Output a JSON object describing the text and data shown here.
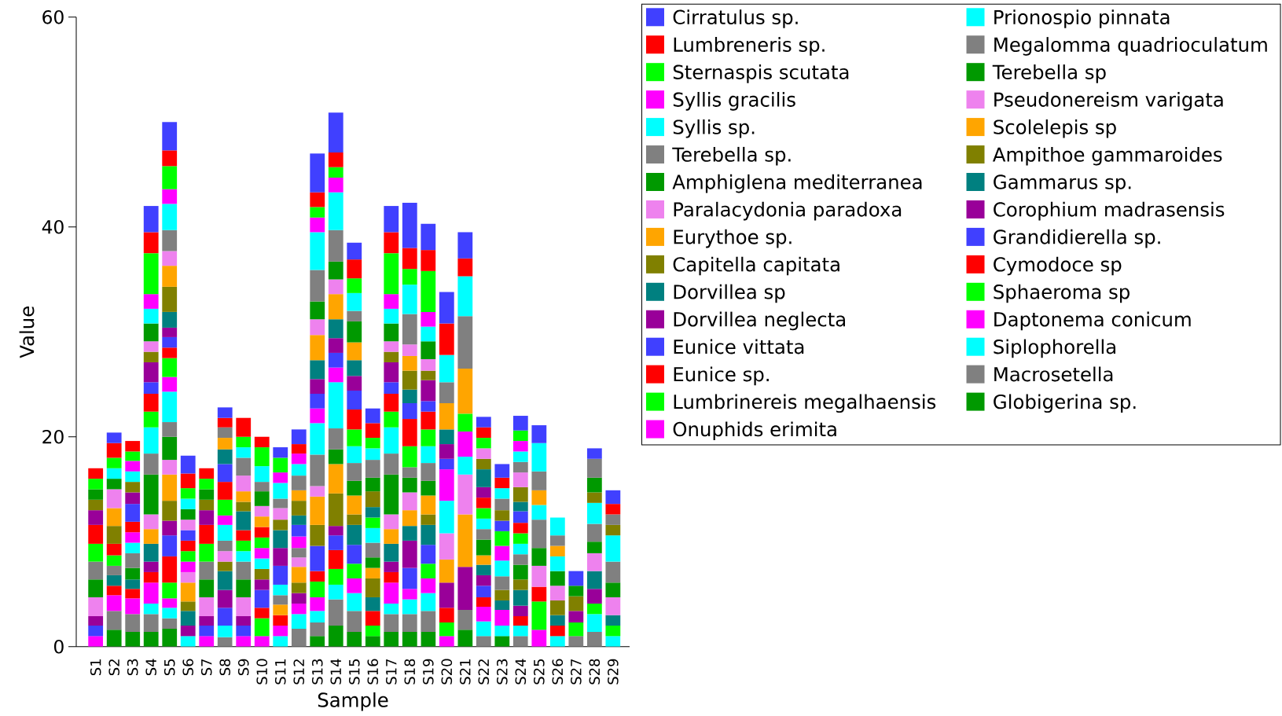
{
  "chart_data": {
    "type": "bar",
    "stacked": true,
    "xlabel": "Sample",
    "ylabel": "Value",
    "legend": "right",
    "categories": [
      "S1",
      "S2",
      "S3",
      "S4",
      "S5",
      "S6",
      "S7",
      "S8",
      "S9",
      "S10",
      "S11",
      "S12",
      "S13",
      "S14",
      "S15",
      "S16",
      "S17",
      "S18",
      "S19",
      "S20",
      "S21",
      "S22",
      "S23",
      "S24",
      "S25",
      "S26",
      "S27",
      "S28",
      "S29"
    ],
    "ylim": [
      0,
      60
    ],
    "yticks": [
      0,
      20,
      40,
      60
    ],
    "series": [
      {
        "name": "Globigerina sp.",
        "color": "#009900",
        "values": [
          0,
          1.6,
          1.4,
          1.4,
          1.7,
          0,
          0,
          0,
          0,
          0,
          0,
          0,
          1.0,
          2.0,
          1.4,
          1.0,
          1.4,
          1.4,
          1.4,
          0,
          1.6,
          0,
          1.0,
          0,
          0,
          0,
          0,
          0,
          0
        ]
      },
      {
        "name": "Macrosetella",
        "color": "#808080",
        "values": [
          0,
          1.8,
          1.7,
          1.7,
          1.0,
          0,
          0,
          0.9,
          0,
          0,
          0,
          1.7,
          1.3,
          2.5,
          2.0,
          0,
          1.7,
          1.7,
          2.0,
          0,
          1.9,
          1.0,
          0,
          1.0,
          0,
          0,
          1.0,
          1.4,
          0
        ]
      },
      {
        "name": "Siplophorella",
        "color": "#00ffff",
        "values": [
          0,
          0,
          0,
          1.0,
          1.0,
          1.0,
          0,
          1.1,
          0,
          0,
          1.0,
          1.4,
          1.1,
          1.4,
          1.7,
          0,
          1.0,
          1.4,
          1.7,
          0,
          0,
          1.4,
          1.0,
          1.0,
          0,
          1.0,
          0,
          1.7,
          1.0
        ]
      },
      {
        "name": "Daptonema conicum",
        "color": "#ff00ff",
        "values": [
          1.0,
          1.5,
          1.5,
          2.0,
          0.9,
          0,
          1.0,
          0,
          1.0,
          1.0,
          1.0,
          1.0,
          1.3,
          0,
          1.4,
          0,
          2.0,
          1.0,
          1.4,
          1.0,
          0,
          1.4,
          1.5,
          0,
          1.6,
          0,
          0,
          0,
          0
        ]
      },
      {
        "name": "Sphaeroma sp",
        "color": "#00ff00",
        "values": [
          0,
          0,
          0,
          0,
          1.5,
          0,
          0,
          0,
          0,
          1.7,
          0,
          0,
          1.5,
          1.5,
          1.4,
          1.0,
          0,
          0,
          1.4,
          1.3,
          0,
          0,
          0,
          0,
          2.7,
          0,
          1.3,
          1.0,
          1.0
        ]
      },
      {
        "name": "Cymodoce sp",
        "color": "#ff0000",
        "values": [
          0,
          0.9,
          0.9,
          1.0,
          2.5,
          0,
          0,
          0,
          0,
          1.0,
          1.0,
          0,
          1.0,
          1.8,
          0,
          1.4,
          1.0,
          0,
          0,
          1.4,
          0,
          0.9,
          0,
          0.9,
          1.4,
          1.0,
          0,
          0,
          0
        ]
      },
      {
        "name": "Grandidierella sp.",
        "color": "#4040ff",
        "values": [
          1.0,
          0,
          0,
          0,
          2.0,
          0,
          1.0,
          1.7,
          1.0,
          1.7,
          0,
          0,
          2.4,
          1.4,
          1.8,
          0,
          0,
          2.0,
          1.8,
          0,
          0,
          1.1,
          0,
          0,
          0,
          0,
          0,
          0,
          0
        ]
      },
      {
        "name": "Corophium madrasensis",
        "color": "#990099",
        "values": [
          0.9,
          0,
          0,
          1.0,
          1.4,
          1.0,
          0.9,
          1.7,
          0.9,
          1.0,
          0,
          1.0,
          0,
          0.9,
          0,
          0,
          1.0,
          2.6,
          0,
          2.4,
          4.1,
          1.0,
          0,
          1.0,
          0,
          0,
          1.1,
          1.4,
          0
        ]
      },
      {
        "name": "Gammarus sp.",
        "color": "#008080",
        "values": [
          0,
          1.0,
          0.9,
          1.7,
          0,
          1.4,
          0,
          1.8,
          0,
          0,
          0,
          0,
          0,
          0,
          1.9,
          1.3,
          1.7,
          1.4,
          1.9,
          0,
          0,
          1.0,
          0.9,
          1.5,
          0,
          1.0,
          0,
          1.7,
          1.0
        ]
      },
      {
        "name": "Ampithoe gammaroides",
        "color": "#808000",
        "values": [
          0,
          0,
          0,
          0,
          1.9,
          0.9,
          0,
          0.9,
          0,
          1.0,
          0,
          1.0,
          2.0,
          3.1,
          1.0,
          1.8,
          0,
          0,
          1.0,
          0,
          0,
          0,
          1.0,
          1.0,
          0,
          1.4,
          1.4,
          0,
          0
        ]
      },
      {
        "name": "Scolelepis sp",
        "color": "#ffa500",
        "values": [
          0,
          0,
          0,
          1.4,
          2.5,
          1.8,
          0,
          0,
          0,
          0,
          1.0,
          1.5,
          2.7,
          2.8,
          1.8,
          1.0,
          1.4,
          1.5,
          1.8,
          2.2,
          5.0,
          0.9,
          0,
          0,
          0,
          0,
          0,
          0,
          0
        ]
      },
      {
        "name": "Pseudonereism varigata",
        "color": "#ee82ee",
        "values": [
          1.8,
          0,
          0,
          1.4,
          1.4,
          1.0,
          1.8,
          1.0,
          1.8,
          0,
          0,
          0.9,
          1.0,
          0,
          0,
          0,
          1.4,
          1.7,
          0,
          2.5,
          3.8,
          0,
          0,
          0,
          2.0,
          1.4,
          0,
          1.7,
          1.7
        ]
      },
      {
        "name": "Terebella sp",
        "color": "#009900",
        "values": [
          1.7,
          0,
          1.1,
          3.8,
          2.2,
          0,
          1.7,
          0,
          1.7,
          0,
          0,
          0,
          0,
          1.4,
          1.4,
          1.0,
          3.8,
          1.4,
          1.4,
          0,
          0,
          1.5,
          0,
          1.4,
          1.7,
          1.4,
          1.0,
          1.1,
          1.4
        ]
      },
      {
        "name": "Megalomma quadrioculatum",
        "color": "#808080",
        "values": [
          1.7,
          0.9,
          1.4,
          2.0,
          1.4,
          0,
          1.7,
          1.0,
          1.7,
          0,
          0.9,
          0.9,
          3.0,
          2.0,
          1.7,
          1.4,
          2.0,
          1.0,
          1.7,
          0,
          0,
          1.0,
          1.3,
          1.0,
          2.7,
          0,
          0,
          1.7,
          2.0
        ]
      },
      {
        "name": "Prionospio pinnata",
        "color": "#00ffff",
        "values": [
          0,
          0,
          1.0,
          2.5,
          2.9,
          0,
          0,
          1.5,
          1.0,
          1.0,
          1.0,
          0,
          3.0,
          4.4,
          1.6,
          1.4,
          2.5,
          0,
          1.6,
          3.1,
          1.7,
          1.0,
          1.5,
          1.0,
          1.4,
          1.4,
          0,
          2.0,
          2.5
        ]
      },
      {
        "name": "Onuphids erimita",
        "color": "#ff00ff",
        "values": [
          0,
          0,
          1.0,
          0,
          1.4,
          1.0,
          0,
          0.9,
          0,
          1.0,
          0,
          1.1,
          1.4,
          1.4,
          0,
          0,
          0,
          0,
          0,
          3.0,
          2.4,
          0,
          1.4,
          0,
          0,
          0,
          0,
          0,
          0
        ]
      },
      {
        "name": "Lumbrinereis megalhaensis",
        "color": "#00ff00",
        "values": [
          1.7,
          1.0,
          0,
          1.5,
          1.8,
          1.0,
          1.7,
          1.5,
          1.0,
          1.0,
          0,
          0,
          0,
          0,
          1.6,
          1.0,
          1.5,
          2.0,
          1.6,
          0,
          1.7,
          1.0,
          1.4,
          1.0,
          0,
          0,
          0,
          0,
          0
        ]
      },
      {
        "name": "Eunice sp.",
        "color": "#ff0000",
        "values": [
          1.8,
          1.1,
          1.0,
          1.7,
          1.0,
          1.0,
          1.8,
          1.7,
          1.0,
          1.0,
          0,
          0,
          0,
          0,
          1.9,
          0,
          1.7,
          2.6,
          1.7,
          0,
          0,
          1.0,
          0,
          1.0,
          0,
          0,
          0,
          0,
          0
        ]
      },
      {
        "name": "Eunice vittata",
        "color": "#4040ff",
        "values": [
          0,
          0,
          1.7,
          1.1,
          1.0,
          1.0,
          0,
          1.7,
          0,
          0,
          1.8,
          1.1,
          1.4,
          1.4,
          1.8,
          0,
          1.1,
          1.5,
          1.0,
          1.0,
          0,
          0,
          1.0,
          1.1,
          0,
          0,
          1.4,
          0,
          0
        ]
      },
      {
        "name": "Dorvillea neglecta",
        "color": "#990099",
        "values": [
          1.4,
          0,
          1.1,
          1.9,
          0.9,
          0,
          1.4,
          0,
          0,
          0,
          1.7,
          0,
          1.4,
          1.4,
          1.4,
          0,
          1.9,
          0,
          2.0,
          1.4,
          0,
          1.0,
          0,
          0,
          0,
          0,
          0,
          0,
          0
        ]
      },
      {
        "name": "Dorvillea sp",
        "color": "#008080",
        "values": [
          0,
          0,
          0,
          0,
          1.5,
          0,
          0,
          1.4,
          1.8,
          0,
          1.7,
          0.9,
          1.8,
          1.8,
          1.5,
          1.0,
          0,
          1.3,
          0,
          1.4,
          0,
          1.7,
          0,
          0.9,
          0,
          0,
          0,
          0,
          0
        ]
      },
      {
        "name": "Capitella capitata",
        "color": "#808000",
        "values": [
          1.0,
          1.7,
          1.0,
          1.0,
          2.4,
          0,
          1.0,
          0,
          0.9,
          0,
          1.0,
          1.4,
          0,
          0,
          0,
          1.5,
          1.0,
          1.8,
          0.9,
          0,
          0,
          1.0,
          1.0,
          1.4,
          0,
          0,
          0,
          1.0,
          1.0
        ]
      },
      {
        "name": "Eurythoe sp.",
        "color": "#ffa500",
        "values": [
          0,
          1.7,
          0,
          0,
          2.0,
          0,
          0,
          1.1,
          1.0,
          1.0,
          0,
          1.0,
          2.4,
          2.4,
          1.7,
          0,
          0,
          1.4,
          0,
          2.5,
          4.3,
          0,
          0,
          0,
          1.4,
          1.0,
          0,
          0,
          0
        ]
      },
      {
        "name": "Paralacydonia paradoxa",
        "color": "#ee82ee",
        "values": [
          0,
          1.8,
          0,
          1.0,
          1.4,
          1.0,
          0,
          0,
          1.5,
          1.0,
          1.1,
          0,
          1.5,
          1.4,
          0,
          0,
          1.0,
          1.1,
          1.1,
          0,
          0,
          1.0,
          0,
          1.4,
          0,
          0,
          0,
          0,
          0
        ]
      },
      {
        "name": "Amphiglena mediterranea",
        "color": "#009900",
        "values": [
          1.0,
          1.0,
          0,
          1.7,
          0,
          1.0,
          1.0,
          0,
          0,
          1.4,
          0,
          0,
          1.7,
          1.7,
          2.0,
          1.3,
          1.7,
          0,
          1.7,
          0,
          0,
          0,
          0,
          0,
          0,
          0,
          0,
          1.4,
          0
        ]
      },
      {
        "name": "Terebella sp.",
        "color": "#808080",
        "values": [
          0,
          0,
          0,
          0,
          2.0,
          0,
          0,
          1.0,
          1.7,
          0.9,
          0.9,
          1.4,
          3.0,
          3.0,
          1.0,
          1.7,
          0,
          2.9,
          0,
          2.0,
          5.0,
          0,
          1.1,
          1.0,
          1.8,
          1.0,
          0,
          1.8,
          1.0
        ]
      },
      {
        "name": "Syllis sp.",
        "color": "#00ffff",
        "values": [
          0,
          1.0,
          1.0,
          1.4,
          2.5,
          1.0,
          0,
          0,
          1.0,
          1.5,
          1.5,
          1.1,
          3.6,
          3.6,
          1.7,
          1.1,
          1.4,
          2.8,
          1.4,
          2.6,
          3.8,
          0,
          1.0,
          1.0,
          2.7,
          1.7,
          0,
          0,
          0
        ]
      },
      {
        "name": "Syllis gracilis",
        "color": "#ff00ff",
        "values": [
          0,
          0,
          1.0,
          1.4,
          1.4,
          0,
          0,
          0,
          0,
          0,
          1.0,
          1.0,
          1.4,
          1.4,
          0,
          0,
          1.4,
          0,
          1.4,
          0,
          0,
          0,
          0,
          1.0,
          0,
          0,
          0,
          0,
          0
        ]
      },
      {
        "name": "Sternaspis scutata",
        "color": "#00ff00",
        "values": [
          1.0,
          1.0,
          0.9,
          3.9,
          2.2,
          1.0,
          1.0,
          0,
          1.0,
          1.8,
          1.4,
          0,
          1.0,
          1.0,
          1.4,
          1.0,
          3.9,
          1.5,
          3.9,
          0,
          0,
          1.0,
          0,
          1.0,
          0,
          0,
          0,
          0,
          0
        ]
      },
      {
        "name": "Lumbreneris sp.",
        "color": "#ff0000",
        "values": [
          1.0,
          1.4,
          1.0,
          2.0,
          1.5,
          1.4,
          1.0,
          0.9,
          1.8,
          1.0,
          0,
          0.9,
          1.4,
          1.4,
          1.8,
          1.4,
          2.0,
          2.0,
          2.0,
          3.0,
          1.7,
          1.0,
          1.0,
          0,
          0,
          0,
          0,
          0,
          1.0
        ]
      },
      {
        "name": "Cirratulus sp.",
        "color": "#4040ff",
        "values": [
          0,
          1.0,
          0,
          2.5,
          2.7,
          1.7,
          0,
          1.0,
          0,
          0,
          1.0,
          1.4,
          3.7,
          3.8,
          1.6,
          1.4,
          2.5,
          4.3,
          2.5,
          3.0,
          2.5,
          1.0,
          1.3,
          1.4,
          1.7,
          0,
          0,
          1.0,
          1.3
        ]
      }
    ]
  }
}
